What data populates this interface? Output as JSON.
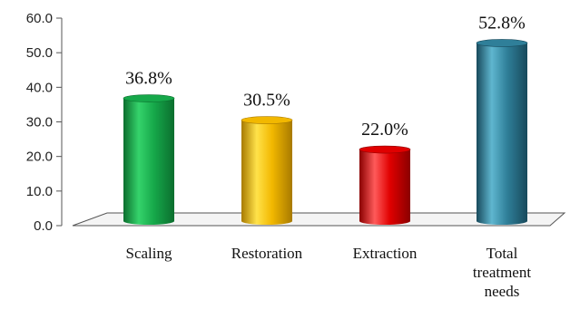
{
  "chart_data": {
    "type": "bar",
    "title": "",
    "xlabel": "",
    "ylabel": "",
    "ylim": [
      0,
      60
    ],
    "yticks": [
      "0.0",
      "10.0",
      "20.0",
      "30.0",
      "40.0",
      "50.0",
      "60.0"
    ],
    "grid": false,
    "legend": "none",
    "categories": [
      {
        "lines": [
          "Scaling"
        ]
      },
      {
        "lines": [
          "Restoration"
        ]
      },
      {
        "lines": [
          "Extraction"
        ]
      },
      {
        "lines": [
          "Total",
          "treatment",
          "needs"
        ]
      }
    ],
    "values": [
      36.8,
      30.5,
      22.0,
      52.8
    ],
    "data_labels": [
      "36.8%",
      "30.5%",
      "22.0%",
      "52.8%"
    ],
    "colors": [
      {
        "light": "#35d36b",
        "mid": "#16a84a",
        "dark": "#0b6e2e"
      },
      {
        "light": "#ffe24a",
        "mid": "#f2b800",
        "dark": "#a87a00"
      },
      {
        "light": "#ff5a5a",
        "mid": "#e00000",
        "dark": "#8a0000"
      },
      {
        "light": "#5fb6cf",
        "mid": "#2f7f99",
        "dark": "#184a5c"
      }
    ]
  }
}
